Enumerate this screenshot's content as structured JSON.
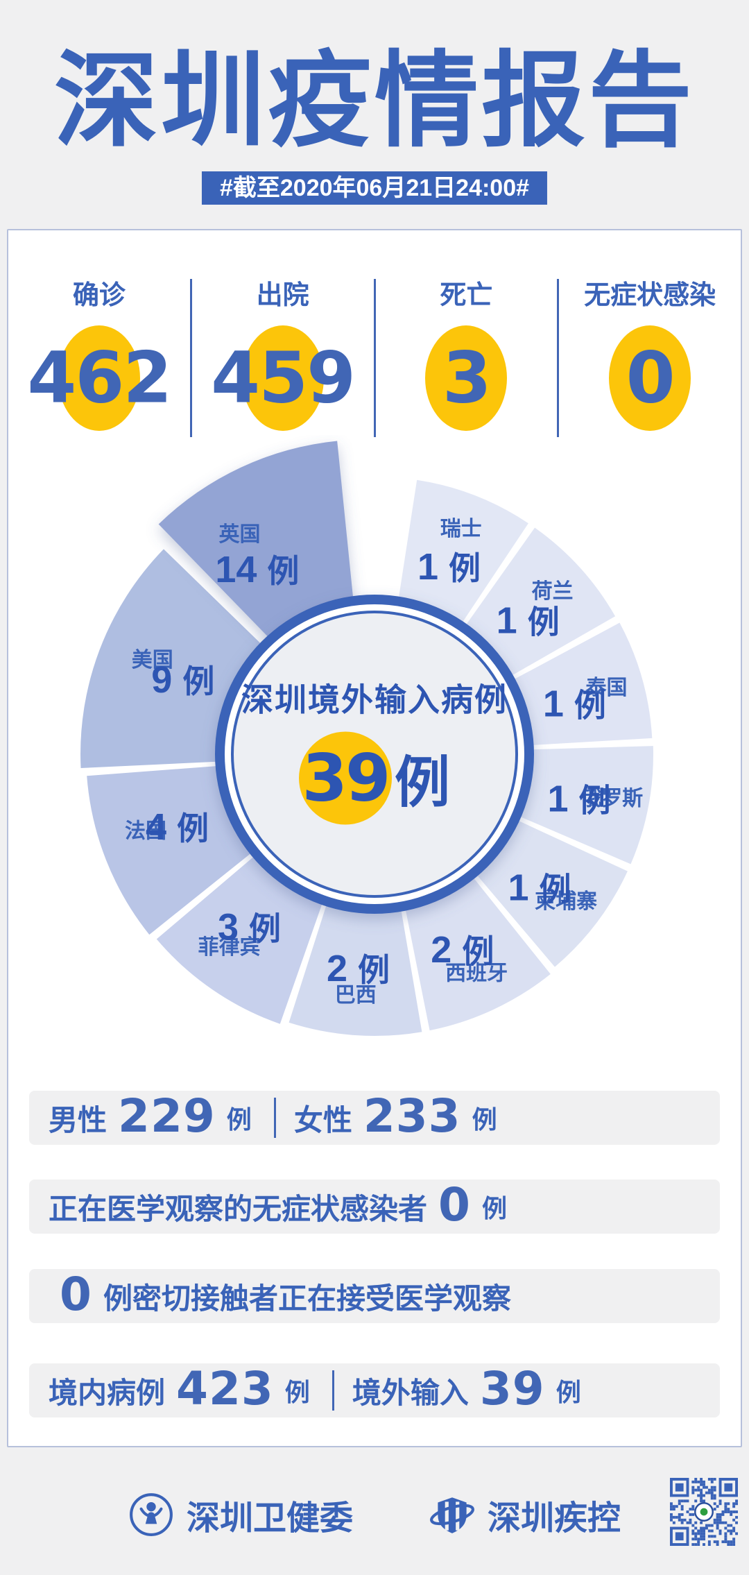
{
  "page": {
    "title": "深圳疫情报告",
    "subtitle": "#截至2020年06月21日24:00#",
    "accent": "#3a63b8",
    "number_blue": "#4166b5",
    "yellow": "#fcc50a",
    "card_border": "#b6c0db",
    "background": "#f0f0f1"
  },
  "stats": {
    "items": [
      {
        "label": "确诊",
        "value": "462"
      },
      {
        "label": "出院",
        "value": "459"
      },
      {
        "label": "死亡",
        "value": "3"
      },
      {
        "label": "无症状感染",
        "value": "0"
      }
    ]
  },
  "chart_data": {
    "type": "pie",
    "variant": "rose",
    "title": "深圳境外输入病例",
    "center_total": "39",
    "unit": "例",
    "legend_position": "on-segment-labels",
    "categories": [
      "瑞士",
      "荷兰",
      "泰国",
      "俄罗斯",
      "柬埔寨",
      "西班牙",
      "巴西",
      "菲律宾",
      "法国",
      "美国",
      "英国"
    ],
    "values": [
      1,
      1,
      1,
      1,
      1,
      2,
      2,
      3,
      4,
      9,
      14
    ],
    "segments": [
      {
        "name": "瑞士",
        "cases": 1,
        "start": 8,
        "size": 26.5,
        "radius": 400,
        "label_angle": 21,
        "color": "#e2e7f5"
      },
      {
        "name": "荷兰",
        "cases": 1,
        "start": 34.5,
        "size": 26.5,
        "radius": 400,
        "label_angle": 47.5,
        "color": "#e0e5f4"
      },
      {
        "name": "泰国",
        "cases": 1,
        "start": 61,
        "size": 26.5,
        "radius": 401,
        "label_angle": 74,
        "color": "#dfe4f4"
      },
      {
        "name": "俄罗斯",
        "cases": 1,
        "start": 87.5,
        "size": 26.5,
        "radius": 402,
        "label_angle": 100.5,
        "color": "#dde3f3"
      },
      {
        "name": "柬埔寨",
        "cases": 1,
        "start": 114,
        "size": 26.5,
        "radius": 402,
        "label_angle": 127.5,
        "color": "#dce2f2"
      },
      {
        "name": "西班牙",
        "cases": 2,
        "start": 140.5,
        "size": 29,
        "radius": 406,
        "label_angle": 155,
        "color": "#dae0f2"
      },
      {
        "name": "巴西",
        "cases": 2,
        "start": 169.5,
        "size": 29,
        "radius": 406,
        "label_angle": 184.5,
        "color": "#d2daef"
      },
      {
        "name": "菲律宾",
        "cases": 3,
        "start": 198.5,
        "size": 32,
        "radius": 412,
        "label_angle": 217,
        "color": "#c7d0ec"
      },
      {
        "name": "法国",
        "cases": 4,
        "start": 230.5,
        "size": 36,
        "radius": 416,
        "label_angle": 251.5,
        "color": "#b9c5e6"
      },
      {
        "name": "美国",
        "cases": 9,
        "start": 266.5,
        "size": 48.5,
        "radius": 424,
        "label_angle": 293,
        "color": "#afbee1"
      },
      {
        "name": "英国",
        "cases": 14,
        "start": 315,
        "size": 40,
        "radius": 432,
        "label_angle": 328,
        "color": "#93a4d4",
        "offset": 24
      }
    ]
  },
  "rows": [
    {
      "tokens": [
        {
          "t": "text",
          "v": "男性"
        },
        {
          "t": "num",
          "v": "229"
        },
        {
          "t": "unit",
          "v": "例"
        },
        {
          "t": "div"
        },
        {
          "t": "text",
          "v": "女性"
        },
        {
          "t": "num",
          "v": "233"
        },
        {
          "t": "unit",
          "v": "例"
        }
      ]
    },
    {
      "tokens": [
        {
          "t": "text",
          "v": "正在医学观察的无症状感染者"
        },
        {
          "t": "num",
          "v": "0"
        },
        {
          "t": "unit",
          "v": "例"
        }
      ]
    },
    {
      "tokens": [
        {
          "t": "num",
          "v": "0"
        },
        {
          "t": "text",
          "v": "例密切接触者正在接受医学观察"
        }
      ]
    },
    {
      "tokens": [
        {
          "t": "text",
          "v": "境内病例"
        },
        {
          "t": "num",
          "v": "423"
        },
        {
          "t": "unit",
          "v": "例"
        },
        {
          "t": "div"
        },
        {
          "t": "text",
          "v": "境外输入"
        },
        {
          "t": "num",
          "v": "39"
        },
        {
          "t": "unit",
          "v": "例"
        }
      ]
    }
  ],
  "footer": {
    "orgs": [
      {
        "name": "深圳卫健委",
        "icon": "health-commission-icon"
      },
      {
        "name": "深圳疾控",
        "icon": "cdc-shield-icon"
      }
    ],
    "qr": "qr-code"
  }
}
